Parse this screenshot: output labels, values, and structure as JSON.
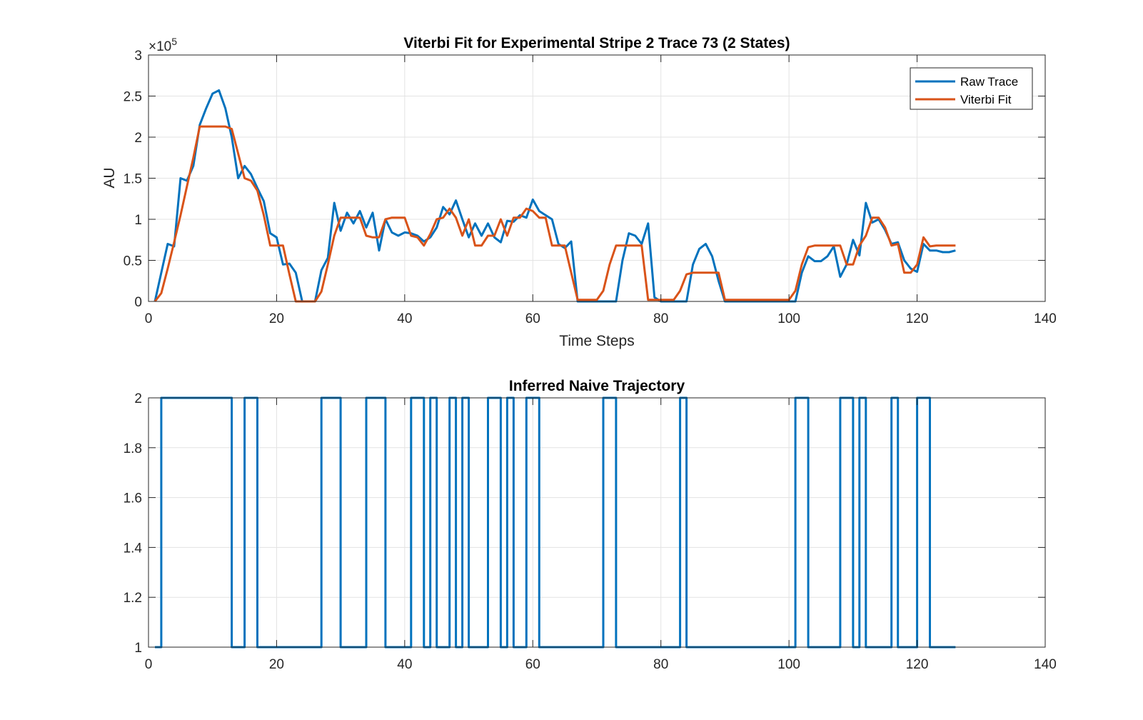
{
  "chart_data": [
    {
      "type": "line",
      "title": "Viterbi Fit for Experimental Stripe 2 Trace 73 (2 States)",
      "xlabel": "Time Steps",
      "ylabel": "AU",
      "y_exponent_label": "×10",
      "y_exponent_power": "5",
      "xlim": [
        0,
        140
      ],
      "ylim": [
        0,
        3
      ],
      "grid": true,
      "legend_position": "top-right",
      "x_ticks": [
        "0",
        "20",
        "40",
        "60",
        "80",
        "100",
        "120",
        "140"
      ],
      "y_ticks": [
        "0",
        "0.5",
        "1",
        "1.5",
        "2",
        "2.5",
        "3"
      ],
      "x_start": 1,
      "series": [
        {
          "name": "Raw Trace",
          "color": "#0072BD",
          "values": [
            0,
            0.35,
            0.7,
            0.67,
            1.5,
            1.47,
            1.65,
            2.15,
            2.35,
            2.53,
            2.57,
            2.35,
            2.0,
            1.5,
            1.65,
            1.55,
            1.38,
            1.22,
            0.83,
            0.78,
            0.45,
            0.46,
            0.35,
            0.0,
            0.0,
            0.0,
            0.38,
            0.53,
            1.2,
            0.86,
            1.08,
            0.95,
            1.1,
            0.9,
            1.08,
            0.62,
            1.0,
            0.84,
            0.8,
            0.84,
            0.83,
            0.8,
            0.73,
            0.78,
            0.9,
            1.15,
            1.06,
            1.23,
            1.0,
            0.78,
            0.95,
            0.8,
            0.95,
            0.78,
            0.72,
            0.98,
            0.97,
            1.05,
            1.02,
            1.24,
            1.1,
            1.05,
            1.0,
            0.7,
            0.65,
            0.73,
            0.0,
            0.0,
            0.0,
            0.0,
            0.0,
            0.0,
            0.0,
            0.5,
            0.83,
            0.8,
            0.7,
            0.95,
            0.05,
            0.0,
            0.0,
            0.0,
            0.0,
            0.0,
            0.45,
            0.64,
            0.7,
            0.55,
            0.25,
            0.0,
            0.0,
            0.0,
            0.0,
            0.0,
            0.0,
            0.0,
            0.0,
            0.0,
            0.0,
            0.0,
            0.0,
            0.35,
            0.55,
            0.49,
            0.49,
            0.55,
            0.67,
            0.3,
            0.45,
            0.75,
            0.56,
            1.2,
            0.96,
            1.0,
            0.87,
            0.7,
            0.72,
            0.5,
            0.4,
            0.36,
            0.7,
            0.62,
            0.62,
            0.6,
            0.6,
            0.62
          ]
        },
        {
          "name": "Viterbi Fit",
          "color": "#D95319",
          "values": [
            0,
            0.1,
            0.4,
            0.72,
            1.05,
            1.4,
            1.75,
            2.13,
            2.13,
            2.13,
            2.13,
            2.13,
            2.1,
            1.8,
            1.5,
            1.47,
            1.35,
            1.05,
            0.68,
            0.68,
            0.68,
            0.33,
            0.0,
            0.0,
            0.0,
            0.0,
            0.12,
            0.45,
            0.8,
            1.02,
            1.02,
            1.02,
            1.02,
            0.8,
            0.78,
            0.78,
            1.0,
            1.02,
            1.02,
            1.02,
            0.8,
            0.78,
            0.68,
            0.82,
            1.0,
            1.02,
            1.13,
            1.02,
            0.8,
            1.0,
            0.68,
            0.68,
            0.8,
            0.8,
            1.0,
            0.8,
            1.02,
            1.02,
            1.13,
            1.1,
            1.02,
            1.02,
            0.68,
            0.68,
            0.68,
            0.35,
            0.02,
            0.02,
            0.02,
            0.02,
            0.13,
            0.45,
            0.68,
            0.68,
            0.68,
            0.68,
            0.68,
            0.02,
            0.02,
            0.02,
            0.02,
            0.02,
            0.13,
            0.33,
            0.35,
            0.35,
            0.35,
            0.35,
            0.35,
            0.02,
            0.02,
            0.02,
            0.02,
            0.02,
            0.02,
            0.02,
            0.02,
            0.02,
            0.02,
            0.02,
            0.13,
            0.45,
            0.66,
            0.68,
            0.68,
            0.68,
            0.68,
            0.68,
            0.45,
            0.45,
            0.68,
            0.8,
            1.02,
            1.02,
            0.9,
            0.68,
            0.7,
            0.35,
            0.35,
            0.45,
            0.78,
            0.67,
            0.68,
            0.68,
            0.68,
            0.68
          ]
        }
      ]
    },
    {
      "type": "line",
      "step": true,
      "title": "Inferred Naive Trajectory",
      "xlim": [
        0,
        140
      ],
      "ylim": [
        1,
        2
      ],
      "grid": true,
      "x_ticks": [
        "0",
        "20",
        "40",
        "60",
        "80",
        "100",
        "120",
        "140"
      ],
      "y_ticks": [
        "1",
        "1.2",
        "1.4",
        "1.6",
        "1.8",
        "2"
      ],
      "series": [
        {
          "name": "Inferred Naive Trajectory",
          "color": "#0072BD",
          "x": [
            1,
            2,
            2,
            13,
            13,
            15,
            15,
            17,
            17,
            27,
            27,
            30,
            30,
            34,
            34,
            37,
            37,
            41,
            41,
            43,
            43,
            44,
            44,
            45,
            45,
            47,
            47,
            48,
            48,
            49,
            49,
            50,
            50,
            53,
            53,
            55,
            55,
            56,
            56,
            57,
            57,
            59,
            59,
            61,
            61,
            71,
            71,
            73,
            73,
            83,
            83,
            84,
            84,
            101,
            101,
            103,
            103,
            108,
            108,
            110,
            110,
            111,
            111,
            112,
            112,
            116,
            116,
            117,
            117,
            120,
            120,
            122,
            122,
            126
          ],
          "y": [
            1,
            1,
            2,
            2,
            1,
            1,
            2,
            2,
            1,
            1,
            2,
            2,
            1,
            1,
            2,
            2,
            1,
            1,
            2,
            2,
            1,
            1,
            2,
            2,
            1,
            1,
            2,
            2,
            1,
            1,
            2,
            2,
            1,
            1,
            2,
            2,
            1,
            1,
            2,
            2,
            1,
            1,
            2,
            2,
            1,
            1,
            2,
            2,
            1,
            1,
            2,
            2,
            1,
            1,
            2,
            2,
            1,
            1,
            2,
            2,
            1,
            1,
            2,
            2,
            1,
            1,
            2,
            2,
            1,
            1,
            2,
            2,
            1,
            1
          ]
        }
      ]
    }
  ]
}
